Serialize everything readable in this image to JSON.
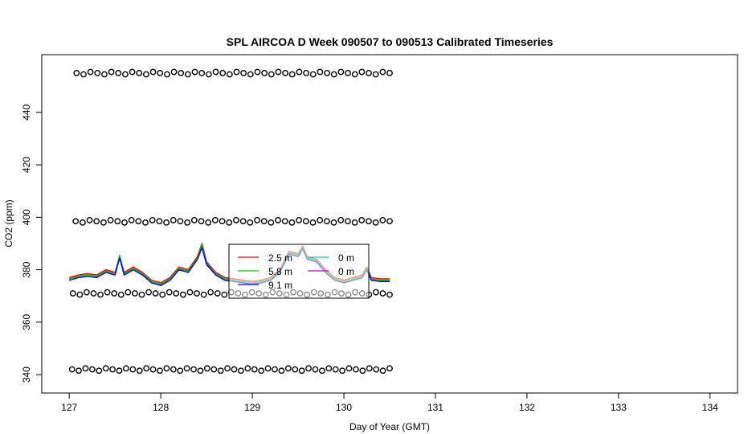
{
  "chart_data": {
    "type": "line",
    "title": "SPL AIRCOA D  Week 090507 to 090513  Calibrated Timeseries",
    "xlabel": "Day of Year (GMT)",
    "ylabel": "CO2 (ppm)",
    "xlim": [
      126.7,
      134.3
    ],
    "ylim": [
      333,
      462
    ],
    "x_ticks": [
      127,
      128,
      129,
      130,
      131,
      132,
      133,
      134
    ],
    "y_ticks": [
      340,
      360,
      380,
      400,
      420,
      440
    ],
    "grid": false,
    "legend_position": "center",
    "calibration_series": [
      {
        "color": "#000000",
        "y": 455,
        "x_start": 127.08,
        "x_end": 130.5,
        "count": 46
      },
      {
        "color": "#000000",
        "y": 398.5,
        "x_start": 127.07,
        "x_end": 130.5,
        "count": 46
      },
      {
        "color": "#000000",
        "y": 371,
        "x_start": 127.04,
        "x_end": 130.5,
        "count": 47
      },
      {
        "color": "#000000",
        "y": 342,
        "x_start": 127.03,
        "x_end": 130.5,
        "count": 48
      }
    ],
    "series": [
      {
        "name": "2.5 m",
        "color": "#ff0000",
        "x": [
          127.0,
          127.1,
          127.2,
          127.3,
          127.4,
          127.5,
          127.55,
          127.6,
          127.7,
          127.8,
          127.9,
          128.0,
          128.1,
          128.2,
          128.3,
          128.4,
          128.45,
          128.5,
          128.6,
          128.7,
          128.8,
          128.9,
          129.0,
          129.1,
          129.2,
          129.3,
          129.4,
          129.5,
          129.55,
          129.6,
          129.7,
          129.8,
          129.9,
          130.0,
          130.1,
          130.2,
          130.25,
          130.3,
          130.4,
          130.5
        ],
        "y": [
          377,
          378,
          378.5,
          378,
          380,
          379,
          385,
          379,
          381,
          379,
          376,
          375,
          377,
          381,
          380,
          385,
          390,
          383,
          379,
          377,
          376.5,
          376,
          375.5,
          376,
          377,
          380,
          387,
          386,
          389,
          385,
          384,
          380,
          377,
          376,
          377,
          378,
          381,
          377,
          376.5,
          376.5
        ]
      },
      {
        "name": "5.8 m",
        "color": "#00cc00",
        "x": [
          127.0,
          127.1,
          127.2,
          127.3,
          127.4,
          127.5,
          127.55,
          127.6,
          127.7,
          127.8,
          127.9,
          128.0,
          128.1,
          128.2,
          128.3,
          128.4,
          128.45,
          128.5,
          128.6,
          128.7,
          128.8,
          128.9,
          129.0,
          129.1,
          129.2,
          129.3,
          129.4,
          129.5,
          129.55,
          129.6,
          129.7,
          129.8,
          129.9,
          130.0,
          130.1,
          130.2,
          130.25,
          130.3,
          130.4,
          130.5
        ],
        "y": [
          376.5,
          377.5,
          378,
          377.5,
          379.5,
          378.5,
          385.5,
          378.5,
          380.5,
          378.5,
          375.5,
          374.5,
          376.5,
          380.5,
          379.5,
          384.5,
          389.5,
          382.5,
          378.5,
          376.5,
          376,
          375.5,
          375,
          375.5,
          376.5,
          379.5,
          386.5,
          385.5,
          388.5,
          384.5,
          383.5,
          379.5,
          376.5,
          375.5,
          376.5,
          377.5,
          380.5,
          376.5,
          376,
          376
        ]
      },
      {
        "name": "9.1 m",
        "color": "#0000ff",
        "x": [
          127.0,
          127.1,
          127.2,
          127.3,
          127.4,
          127.5,
          127.55,
          127.6,
          127.7,
          127.8,
          127.9,
          128.0,
          128.1,
          128.2,
          128.3,
          128.4,
          128.45,
          128.5,
          128.6,
          128.7,
          128.8,
          128.9,
          129.0,
          129.1,
          129.2,
          129.3,
          129.4,
          129.5,
          129.55,
          129.6,
          129.7,
          129.8,
          129.9,
          130.0,
          130.1,
          130.2,
          130.25,
          130.3,
          130.4,
          130.5
        ],
        "y": [
          376,
          377,
          377.5,
          377,
          379,
          378,
          384.5,
          378,
          380,
          378,
          375,
          374,
          376,
          380,
          379,
          384,
          388.5,
          382,
          378,
          376,
          375.5,
          375,
          374.5,
          375,
          376,
          379,
          386,
          385,
          388,
          384,
          383,
          379,
          376,
          375,
          376,
          377,
          380,
          376,
          375.5,
          375.5
        ]
      },
      {
        "name": "0 m",
        "color": "#00cccc",
        "x": [],
        "y": []
      },
      {
        "name": "0 m",
        "color": "#cc00cc",
        "x": [],
        "y": []
      }
    ]
  }
}
